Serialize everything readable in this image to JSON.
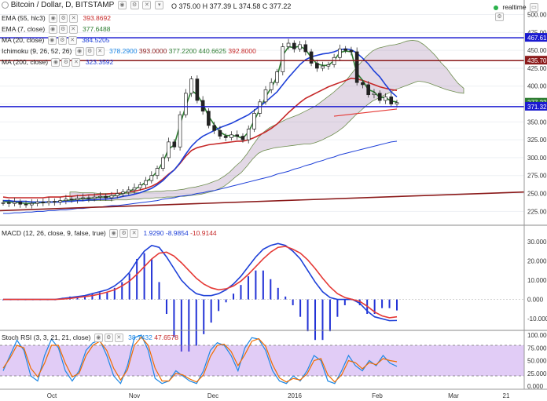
{
  "header": {
    "title": "Bitcoin / Dollar, D, BITSTAMP",
    "ohlc": {
      "o": "375.00",
      "h": "377.39",
      "l": "374.58",
      "c": "377.22"
    },
    "ohlc_labels": {
      "o": "O",
      "h": "H",
      "l": "L",
      "c": "C"
    },
    "realtime": "realtime"
  },
  "indicators": [
    {
      "name": "EMA (55, hlc3)",
      "value": "393.8692",
      "color": "#c62828"
    },
    {
      "name": "EMA (7, close)",
      "value": "377.6488",
      "color": "#2e7d32"
    },
    {
      "name": "MA (20, close)",
      "value": "384.5205",
      "color": "#1e40d8"
    },
    {
      "name": "Ichimoku (9, 26, 52, 26)",
      "values": [
        "378.2900",
        "393.0000",
        "377.2200",
        "440.6625",
        "392.8000"
      ],
      "colors": [
        "#1e88e5",
        "#8b1a1a",
        "#2e7d32",
        "#2e7d32",
        "#c62828"
      ]
    },
    {
      "name": "MA (200, close)",
      "value": "323.3592",
      "color": "#1e40d8"
    }
  ],
  "price_tags": [
    {
      "label": "467.61",
      "color": "#1a1ad0"
    },
    {
      "label": "435.70",
      "color": "#8b1a1a"
    },
    {
      "label": "377.22",
      "color": "#2e7d32"
    },
    {
      "label": "371.32",
      "color": "#1a1ad0"
    }
  ],
  "macd": {
    "name": "MACD (12, 26, close, 9, false, true)",
    "values": [
      "1.9290",
      "-8.9854",
      "-10.9144"
    ]
  },
  "stoch": {
    "name": "Stoch RSI (3, 3, 21, 21, close)",
    "values": [
      "38.7432",
      "47.6578"
    ]
  },
  "chart_data": [
    {
      "type": "candlestick",
      "title": "Bitcoin / Dollar, D, BITSTAMP",
      "x_ticks": [
        "Oct",
        "Nov",
        "Dec",
        "2016",
        "Feb",
        "Mar",
        "21"
      ],
      "y_ticks": [
        500,
        475,
        450,
        425,
        400,
        375,
        350,
        325,
        300,
        275,
        250,
        225
      ],
      "ylim": [
        210,
        505
      ],
      "close": [
        237,
        236,
        238,
        235,
        234,
        236,
        238,
        237,
        239,
        238,
        240,
        242,
        241,
        243,
        244,
        243,
        245,
        246,
        244,
        247,
        250,
        252,
        255,
        258,
        262,
        268,
        275,
        285,
        300,
        322,
        315,
        360,
        390,
        410,
        380,
        365,
        345,
        338,
        330,
        328,
        332,
        330,
        325,
        340,
        362,
        378,
        395,
        405,
        420,
        455,
        460,
        452,
        458,
        448,
        432,
        425,
        428,
        430,
        440,
        452,
        450,
        448,
        405,
        402,
        388,
        390,
        380,
        385,
        375,
        377
      ],
      "horizontal_lines": [
        467.61,
        435.7,
        371.32
      ],
      "series": [
        {
          "name": "EMA (55, hlc3)",
          "values": [
            245,
            244,
            244,
            244,
            244,
            244,
            244,
            244,
            245,
            245,
            245,
            246,
            246,
            247,
            247,
            248,
            248,
            249,
            249,
            250,
            250,
            251,
            252,
            253,
            255,
            257,
            260,
            264,
            270,
            277,
            283,
            292,
            302,
            310,
            314,
            316,
            318,
            319,
            320,
            321,
            322,
            323,
            323,
            325,
            328,
            332,
            336,
            341,
            347,
            355,
            363,
            370,
            377,
            383,
            387,
            391,
            395,
            399,
            402,
            405,
            408,
            411,
            410,
            408,
            405,
            402,
            399,
            397,
            395,
            394
          ]
        },
        {
          "name": "EMA (7, close)",
          "values": [
            239,
            238,
            238,
            237,
            236,
            236,
            237,
            237,
            238,
            238,
            239,
            240,
            241,
            242,
            243,
            243,
            244,
            245,
            245,
            246,
            248,
            250,
            253,
            256,
            260,
            266,
            272,
            281,
            294,
            312,
            318,
            346,
            372,
            394,
            388,
            375,
            358,
            346,
            336,
            331,
            331,
            330,
            327,
            336,
            352,
            368,
            385,
            398,
            413,
            443,
            455,
            454,
            456,
            451,
            440,
            431,
            429,
            429,
            436,
            447,
            449,
            448,
            418,
            408,
            395,
            392,
            384,
            384,
            379,
            378
          ]
        },
        {
          "name": "MA (20, close)",
          "values": [
            240,
            240,
            239,
            239,
            239,
            238,
            238,
            238,
            238,
            238,
            238,
            239,
            239,
            240,
            240,
            241,
            241,
            242,
            242,
            243,
            244,
            246,
            247,
            249,
            251,
            254,
            257,
            262,
            268,
            276,
            283,
            293,
            305,
            316,
            324,
            330,
            334,
            338,
            342,
            345,
            348,
            352,
            356,
            360,
            366,
            372,
            378,
            385,
            392,
            402,
            412,
            421,
            430,
            437,
            441,
            443,
            445,
            446,
            448,
            451,
            452,
            451,
            446,
            439,
            431,
            421,
            413,
            402,
            392,
            385
          ]
        },
        {
          "name": "MA (200, close)",
          "values": [
            222,
            222,
            223,
            223,
            224,
            224,
            225,
            225,
            226,
            226,
            227,
            227,
            228,
            229,
            229,
            230,
            231,
            231,
            232,
            233,
            233,
            234,
            235,
            236,
            237,
            238,
            239,
            240,
            242,
            243,
            244,
            246,
            247,
            248,
            250,
            251,
            253,
            254,
            256,
            258,
            260,
            262,
            264,
            266,
            268,
            270,
            272,
            274,
            277,
            279,
            281,
            284,
            286,
            289,
            291,
            294,
            296,
            299,
            301,
            304,
            306,
            308,
            310,
            312,
            314,
            316,
            318,
            320,
            322,
            323
          ]
        }
      ]
    },
    {
      "type": "bar",
      "title": "MACD (12, 26, close, 9, false, true)",
      "y_ticks": [
        30,
        20,
        10,
        0,
        -10
      ],
      "ylim": [
        -14,
        34
      ],
      "series": [
        {
          "name": "MACD",
          "values": [
            0,
            0,
            0,
            0,
            0,
            0,
            0,
            0,
            0.5,
            1,
            1.5,
            2,
            3,
            4,
            5,
            7,
            10,
            14,
            20,
            25,
            28,
            27,
            22,
            16,
            10,
            6,
            3,
            2,
            2,
            3,
            5,
            8,
            12,
            17,
            22,
            26,
            28,
            29,
            28,
            25,
            21,
            15,
            9,
            4,
            1,
            0,
            0,
            0,
            -2,
            -6,
            -9,
            -10,
            -11,
            -10.9
          ]
        },
        {
          "name": "Signal",
          "values": [
            0,
            0,
            0,
            0,
            0,
            0,
            0,
            0,
            0.2,
            0.5,
            1,
            1.5,
            2,
            2.8,
            3.8,
            5,
            7,
            9.5,
            13,
            17,
            21,
            24,
            24.5,
            22.5,
            19,
            15,
            11,
            8,
            6,
            5,
            5.5,
            7,
            9.5,
            13,
            17,
            21,
            24.5,
            27,
            27.5,
            26,
            24,
            20.5,
            16,
            11,
            6.5,
            3,
            1,
            0,
            -1,
            -3.5,
            -6.5,
            -8.5,
            -9.5,
            -9
          ]
        }
      ]
    },
    {
      "type": "line",
      "title": "Stoch RSI (3, 3, 21, 21, close)",
      "y_ticks": [
        100,
        75,
        50,
        25,
        0
      ],
      "ylim": [
        0,
        100
      ],
      "bands": [
        20,
        80
      ],
      "series": [
        {
          "name": "K",
          "values": [
            30,
            60,
            90,
            70,
            20,
            10,
            60,
            92,
            75,
            30,
            10,
            30,
            70,
            85,
            90,
            60,
            20,
            5,
            40,
            95,
            100,
            70,
            15,
            5,
            10,
            30,
            20,
            10,
            5,
            30,
            70,
            85,
            80,
            60,
            30,
            75,
            95,
            92,
            70,
            30,
            10,
            5,
            20,
            10,
            30,
            60,
            50,
            10,
            5,
            30,
            60,
            40,
            30,
            50,
            40,
            60,
            45,
            38.7
          ]
        },
        {
          "name": "D",
          "values": [
            35,
            55,
            80,
            75,
            35,
            18,
            45,
            80,
            80,
            45,
            18,
            25,
            60,
            80,
            88,
            70,
            35,
            12,
            32,
            80,
            96,
            80,
            35,
            10,
            10,
            25,
            22,
            14,
            8,
            22,
            58,
            80,
            82,
            68,
            40,
            62,
            88,
            93,
            78,
            42,
            16,
            8,
            15,
            12,
            24,
            50,
            54,
            22,
            8,
            22,
            50,
            46,
            34,
            46,
            42,
            54,
            50,
            47.7
          ]
        }
      ]
    }
  ]
}
